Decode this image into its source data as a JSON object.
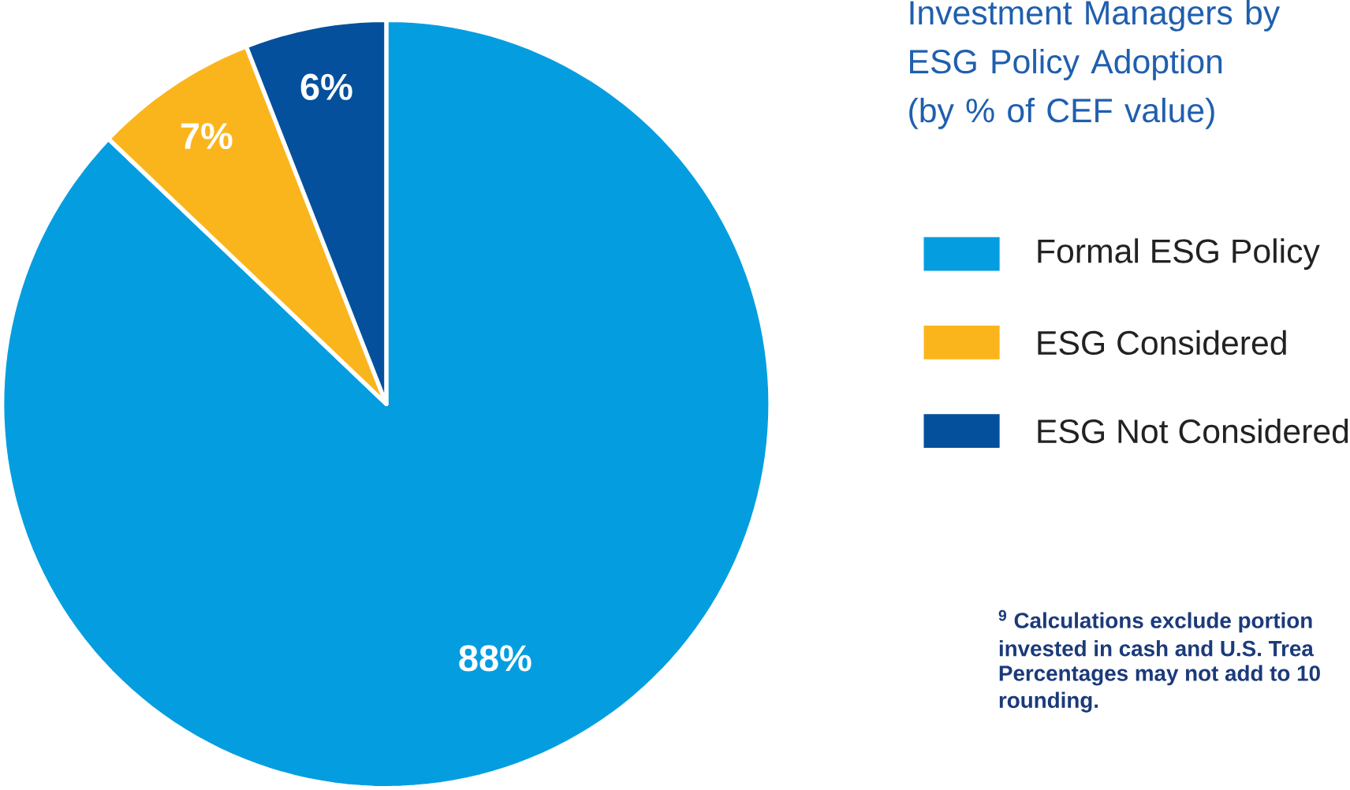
{
  "chart_data": {
    "type": "pie",
    "title": "Investment Managers by ESG Policy Adoption",
    "subtitle": "(by % of CEF value)",
    "categories": [
      "Formal ESG Policy",
      "ESG Considered",
      "ESG Not Considered"
    ],
    "values": [
      88,
      7,
      6
    ],
    "colors": [
      "#049ee0",
      "#fbb51c",
      "#04509c"
    ],
    "value_labels": [
      "88%",
      "7%",
      "6%"
    ],
    "legend": "right",
    "annotations": [
      "$^{9}$ Calculations exclude portion",
      "invested in cash and U.S. Trea",
      "Percentages may not add to 10",
      "rounding."
    ]
  }
}
